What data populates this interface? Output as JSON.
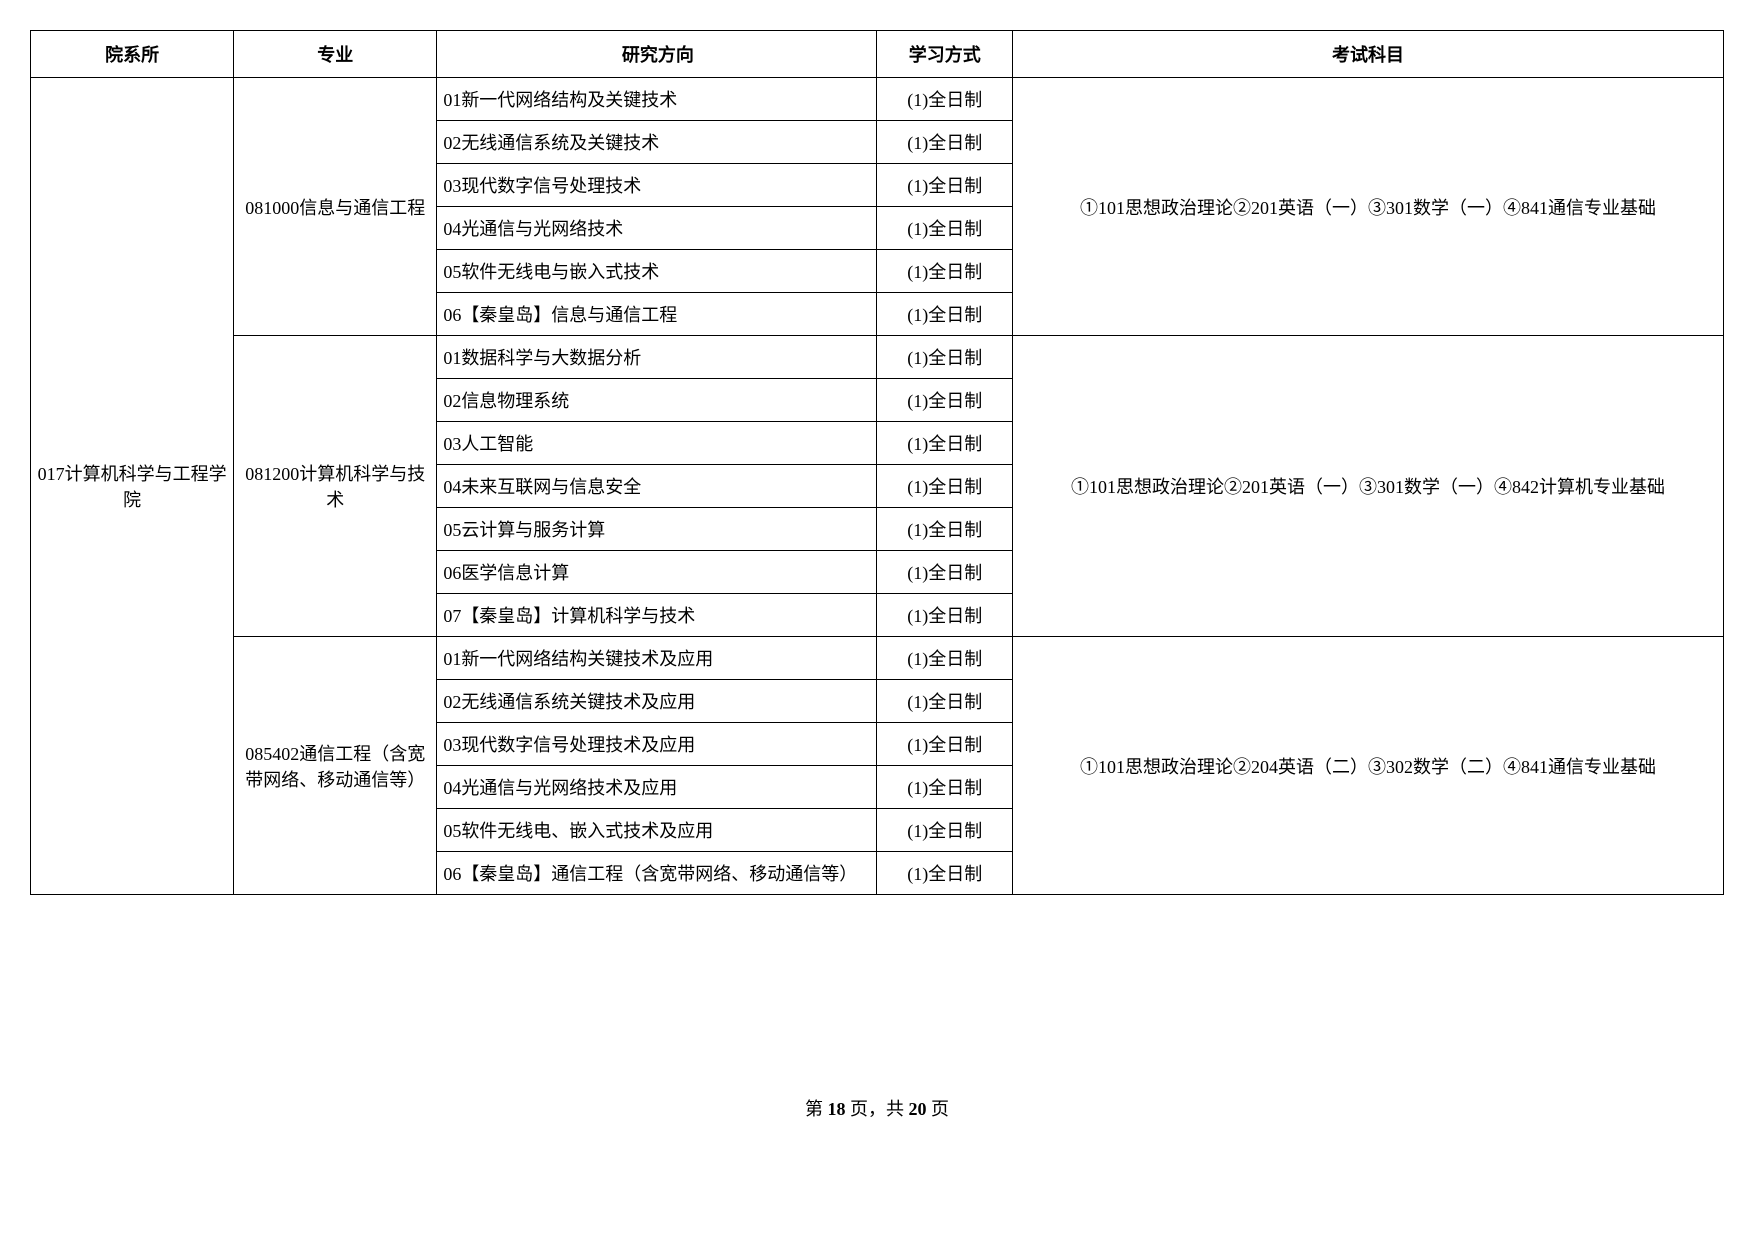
{
  "headers": {
    "dept": "院系所",
    "major": "专业",
    "direction": "研究方向",
    "mode": "学习方式",
    "exam": "考试科目"
  },
  "dept": "017计算机科学与工程学院",
  "majors": [
    {
      "name": "081000信息与通信工程",
      "exam": "①101思想政治理论②201英语（一）③301数学（一）④841通信专业基础",
      "dirs": [
        {
          "d": "01新一代网络结构及关键技术",
          "m": "(1)全日制"
        },
        {
          "d": "02无线通信系统及关键技术",
          "m": "(1)全日制"
        },
        {
          "d": "03现代数字信号处理技术",
          "m": "(1)全日制"
        },
        {
          "d": "04光通信与光网络技术",
          "m": "(1)全日制"
        },
        {
          "d": "05软件无线电与嵌入式技术",
          "m": "(1)全日制"
        },
        {
          "d": "06【秦皇岛】信息与通信工程",
          "m": "(1)全日制"
        }
      ]
    },
    {
      "name": "081200计算机科学与技术",
      "exam": "①101思想政治理论②201英语（一）③301数学（一）④842计算机专业基础",
      "dirs": [
        {
          "d": "01数据科学与大数据分析",
          "m": "(1)全日制"
        },
        {
          "d": "02信息物理系统",
          "m": "(1)全日制"
        },
        {
          "d": "03人工智能",
          "m": "(1)全日制"
        },
        {
          "d": "04未来互联网与信息安全",
          "m": "(1)全日制"
        },
        {
          "d": "05云计算与服务计算",
          "m": "(1)全日制"
        },
        {
          "d": "06医学信息计算",
          "m": "(1)全日制"
        },
        {
          "d": "07【秦皇岛】计算机科学与技术",
          "m": "(1)全日制"
        }
      ]
    },
    {
      "name": "085402通信工程（含宽带网络、移动通信等）",
      "exam": "①101思想政治理论②204英语（二）③302数学（二）④841通信专业基础",
      "dirs": [
        {
          "d": "01新一代网络结构关键技术及应用",
          "m": "(1)全日制"
        },
        {
          "d": "02无线通信系统关键技术及应用",
          "m": "(1)全日制"
        },
        {
          "d": "03现代数字信号处理技术及应用",
          "m": "(1)全日制"
        },
        {
          "d": "04光通信与光网络技术及应用",
          "m": "(1)全日制"
        },
        {
          "d": "05软件无线电、嵌入式技术及应用",
          "m": "(1)全日制"
        },
        {
          "d": "06【秦皇岛】通信工程（含宽带网络、移动通信等）",
          "m": "(1)全日制"
        }
      ]
    }
  ],
  "footer": {
    "prefix": "第",
    "page": "18",
    "mid": "页，共",
    "total": "20",
    "suffix": "页"
  },
  "style": {
    "border_color": "#000000",
    "bg_color": "#ffffff",
    "text_color": "#000000",
    "font_size_cell": 18,
    "font_size_footer": 18
  }
}
